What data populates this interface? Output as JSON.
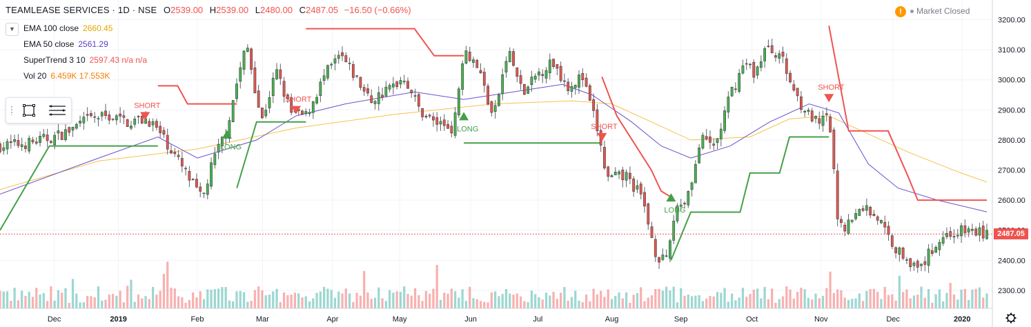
{
  "header": {
    "symbol": "TEAMLEASE SERVICES · 1D · NSE",
    "open_label": "O",
    "open": "2539.00",
    "high_label": "H",
    "high": "2539.00",
    "low_label": "L",
    "low": "2480.00",
    "close_label": "C",
    "close": "2487.05",
    "change": "−16.50 (−0.66%)"
  },
  "legend": [
    {
      "name": "EMA 100 close",
      "values": "2660.45",
      "color": "#f5c24a"
    },
    {
      "name": "EMA 50 close",
      "values": "2561.29",
      "color": "#5b3cc4"
    },
    {
      "name": "SuperTrend 3 10",
      "values": "2597.43 n/a n/a",
      "color": "#ef5350"
    },
    {
      "name": "Vol 20",
      "values": "6.459K 17.553K",
      "color": "#f57c00"
    }
  ],
  "status": {
    "market": "Market Closed",
    "warn_icon": "!"
  },
  "last_price_label": "2487.05",
  "colors": {
    "up": "#26a69a",
    "down": "#ef5350",
    "upBody": "#4caf50",
    "downBody": "#e0584e",
    "ema100": "#f5c24a",
    "ema50": "#6a4fc8",
    "stUp": "#43a047",
    "stDown": "#ef5350"
  },
  "chart_data": {
    "type": "candlestick",
    "y_axis_ticks": [
      3200,
      3100,
      3000,
      2900,
      2800,
      2700,
      2600,
      2500,
      2400,
      2300
    ],
    "y_axis_labels": [
      "3200.00",
      "3100.00",
      "3000.00",
      "2900.00",
      "2800.00",
      "2700.00",
      "2600.00",
      "2500.00",
      "2400.00",
      "2300.00"
    ],
    "ylim": [
      2240,
      3215
    ],
    "x_axis_labels": [
      {
        "label": "Dec",
        "t": 0.055
      },
      {
        "label": "2019",
        "t": 0.12
      },
      {
        "label": "Feb",
        "t": 0.2
      },
      {
        "label": "Mar",
        "t": 0.266
      },
      {
        "label": "Apr",
        "t": 0.337
      },
      {
        "label": "May",
        "t": 0.405
      },
      {
        "label": "Jun",
        "t": 0.477
      },
      {
        "label": "Jul",
        "t": 0.545
      },
      {
        "label": "Aug",
        "t": 0.62
      },
      {
        "label": "Sep",
        "t": 0.69
      },
      {
        "label": "Oct",
        "t": 0.762
      },
      {
        "label": "Nov",
        "t": 0.832
      },
      {
        "label": "Dec",
        "t": 0.905
      },
      {
        "label": "2020",
        "t": 0.975
      }
    ],
    "close_path": [
      [
        0,
        2780
      ],
      [
        0.03,
        2790
      ],
      [
        0.055,
        2810
      ],
      [
        0.07,
        2830
      ],
      [
        0.09,
        2870
      ],
      [
        0.11,
        2880
      ],
      [
        0.13,
        2860
      ],
      [
        0.15,
        2870
      ],
      [
        0.165,
        2810
      ],
      [
        0.175,
        2760
      ],
      [
        0.19,
        2680
      ],
      [
        0.205,
        2600
      ],
      [
        0.215,
        2720
      ],
      [
        0.23,
        2840
      ],
      [
        0.24,
        2990
      ],
      [
        0.25,
        3120
      ],
      [
        0.265,
        2860
      ],
      [
        0.28,
        3030
      ],
      [
        0.295,
        2890
      ],
      [
        0.31,
        2880
      ],
      [
        0.33,
        3020
      ],
      [
        0.345,
        3080
      ],
      [
        0.36,
        3010
      ],
      [
        0.375,
        2930
      ],
      [
        0.39,
        2960
      ],
      [
        0.41,
        3010
      ],
      [
        0.425,
        2900
      ],
      [
        0.44,
        2860
      ],
      [
        0.46,
        2840
      ],
      [
        0.47,
        3110
      ],
      [
        0.485,
        3040
      ],
      [
        0.5,
        2870
      ],
      [
        0.515,
        3100
      ],
      [
        0.53,
        2950
      ],
      [
        0.545,
        3020
      ],
      [
        0.56,
        3060
      ],
      [
        0.575,
        2980
      ],
      [
        0.59,
        3010
      ],
      [
        0.605,
        2840
      ],
      [
        0.615,
        2670
      ],
      [
        0.635,
        2680
      ],
      [
        0.65,
        2610
      ],
      [
        0.665,
        2420
      ],
      [
        0.675,
        2390
      ],
      [
        0.685,
        2580
      ],
      [
        0.695,
        2600
      ],
      [
        0.705,
        2720
      ],
      [
        0.71,
        2800
      ],
      [
        0.725,
        2780
      ],
      [
        0.74,
        2950
      ],
      [
        0.755,
        3060
      ],
      [
        0.765,
        3020
      ],
      [
        0.775,
        3100
      ],
      [
        0.79,
        3090
      ],
      [
        0.8,
        3000
      ],
      [
        0.81,
        2930
      ],
      [
        0.82,
        2880
      ],
      [
        0.83,
        2850
      ],
      [
        0.84,
        2880
      ],
      [
        0.85,
        2500
      ],
      [
        0.865,
        2540
      ],
      [
        0.875,
        2580
      ],
      [
        0.89,
        2540
      ],
      [
        0.9,
        2480
      ],
      [
        0.91,
        2430
      ],
      [
        0.92,
        2410
      ],
      [
        0.93,
        2360
      ],
      [
        0.945,
        2440
      ],
      [
        0.955,
        2480
      ],
      [
        0.965,
        2490
      ],
      [
        0.98,
        2500
      ],
      [
        1.0,
        2487
      ]
    ],
    "series": [
      {
        "name": "EMA 100 close",
        "points": [
          [
            0,
            2635
          ],
          [
            0.1,
            2730
          ],
          [
            0.2,
            2770
          ],
          [
            0.3,
            2840
          ],
          [
            0.4,
            2885
          ],
          [
            0.5,
            2920
          ],
          [
            0.58,
            2930
          ],
          [
            0.62,
            2920
          ],
          [
            0.66,
            2860
          ],
          [
            0.7,
            2800
          ],
          [
            0.76,
            2810
          ],
          [
            0.8,
            2870
          ],
          [
            0.84,
            2880
          ],
          [
            0.88,
            2820
          ],
          [
            0.92,
            2760
          ],
          [
            0.97,
            2695
          ],
          [
            1.0,
            2660
          ]
        ]
      },
      {
        "name": "EMA 50 close",
        "points": [
          [
            0,
            2620
          ],
          [
            0.1,
            2740
          ],
          [
            0.16,
            2810
          ],
          [
            0.2,
            2740
          ],
          [
            0.26,
            2800
          ],
          [
            0.3,
            2880
          ],
          [
            0.35,
            2920
          ],
          [
            0.42,
            2960
          ],
          [
            0.47,
            2935
          ],
          [
            0.52,
            2960
          ],
          [
            0.57,
            2985
          ],
          [
            0.6,
            2950
          ],
          [
            0.64,
            2860
          ],
          [
            0.67,
            2780
          ],
          [
            0.7,
            2740
          ],
          [
            0.74,
            2780
          ],
          [
            0.78,
            2860
          ],
          [
            0.82,
            2920
          ],
          [
            0.85,
            2890
          ],
          [
            0.88,
            2720
          ],
          [
            0.91,
            2640
          ],
          [
            0.95,
            2600
          ],
          [
            1.0,
            2561
          ]
        ]
      },
      {
        "name": "SuperTrend 3 10",
        "segments": [
          {
            "dir": "up",
            "points": [
              [
                0,
                2500
              ],
              [
                0.05,
                2780
              ],
              [
                0.15,
                2780
              ],
              [
                0.16,
                2780
              ]
            ]
          },
          {
            "dir": "down",
            "points": [
              [
                0.16,
                2980
              ],
              [
                0.18,
                2980
              ],
              [
                0.19,
                2920
              ],
              [
                0.24,
                2920
              ]
            ]
          },
          {
            "dir": "up",
            "points": [
              [
                0.24,
                2640
              ],
              [
                0.26,
                2860
              ],
              [
                0.3,
                2860
              ],
              [
                0.31,
                2860
              ]
            ]
          },
          {
            "dir": "down",
            "points": [
              [
                0.31,
                3170
              ],
              [
                0.42,
                3170
              ],
              [
                0.44,
                3080
              ],
              [
                0.47,
                3080
              ]
            ]
          },
          {
            "dir": "up",
            "points": [
              [
                0.47,
                2790
              ],
              [
                0.6,
                2790
              ],
              [
                0.61,
                2790
              ]
            ]
          },
          {
            "dir": "down",
            "points": [
              [
                0.61,
                3010
              ],
              [
                0.625,
                2880
              ],
              [
                0.66,
                2700
              ],
              [
                0.67,
                2630
              ],
              [
                0.68,
                2610
              ]
            ]
          },
          {
            "dir": "up",
            "points": [
              [
                0.68,
                2400
              ],
              [
                0.7,
                2560
              ],
              [
                0.75,
                2560
              ],
              [
                0.76,
                2690
              ],
              [
                0.79,
                2690
              ],
              [
                0.8,
                2810
              ],
              [
                0.84,
                2810
              ]
            ]
          },
          {
            "dir": "down",
            "points": [
              [
                0.84,
                3180
              ],
              [
                0.86,
                2830
              ],
              [
                0.9,
                2830
              ],
              [
                0.92,
                2680
              ],
              [
                0.93,
                2600
              ],
              [
                1.0,
                2600
              ]
            ]
          }
        ]
      }
    ],
    "signals": [
      {
        "type": "SHORT",
        "t": 0.147,
        "price": 2870
      },
      {
        "type": "LONG",
        "t": 0.23,
        "price": 2810
      },
      {
        "type": "SHORT",
        "t": 0.3,
        "price": 2890
      },
      {
        "type": "LONG",
        "t": 0.47,
        "price": 2870
      },
      {
        "type": "SHORT",
        "t": 0.61,
        "price": 2800
      },
      {
        "type": "LONG",
        "t": 0.68,
        "price": 2600
      },
      {
        "type": "SHORT",
        "t": 0.84,
        "price": 2930
      }
    ],
    "volume_ylim": [
      0,
      45000
    ],
    "last_price": 2487.05
  }
}
